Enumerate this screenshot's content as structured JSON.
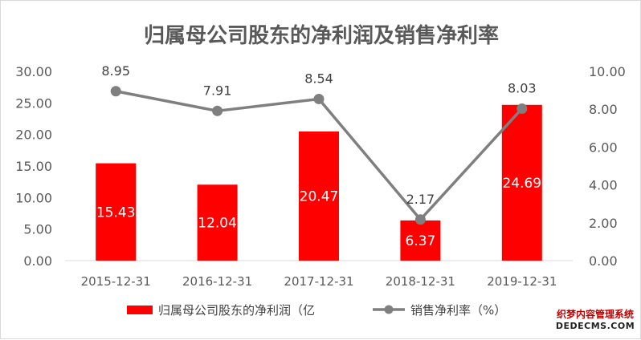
{
  "chart_data": {
    "type": "bar+line",
    "title": "归属母公司股东的净利润及销售净利率",
    "categories": [
      "2015-12-31",
      "2016-12-31",
      "2017-12-31",
      "2018-12-31",
      "2019-12-31"
    ],
    "series": [
      {
        "name": "归属母公司股东的净利润（亿",
        "type": "bar",
        "axis": "left",
        "color": "#ff0000",
        "values": [
          15.43,
          12.04,
          20.47,
          6.37,
          24.69
        ],
        "labels": [
          "15.43",
          "12.04",
          "20.47",
          "6.37",
          "24.69"
        ]
      },
      {
        "name": "销售净利率（%）",
        "type": "line",
        "axis": "right",
        "color": "#7f7f7f",
        "values": [
          8.95,
          7.91,
          8.54,
          2.17,
          8.03
        ],
        "labels": [
          "8.95",
          "7.91",
          "8.54",
          "2.17",
          "8.03"
        ]
      }
    ],
    "y_left": {
      "min": 0,
      "max": 30,
      "ticks": [
        "0.00",
        "5.00",
        "10.00",
        "15.00",
        "20.00",
        "25.00",
        "30.00"
      ]
    },
    "y_right": {
      "min": 0,
      "max": 10,
      "ticks": [
        "0.00",
        "2.00",
        "4.00",
        "6.00",
        "8.00",
        "10.00"
      ]
    },
    "legend_position": "bottom",
    "grid": false
  },
  "watermark": {
    "line1": "织梦内容管理系统",
    "line2": "DEDECMS.COM"
  }
}
